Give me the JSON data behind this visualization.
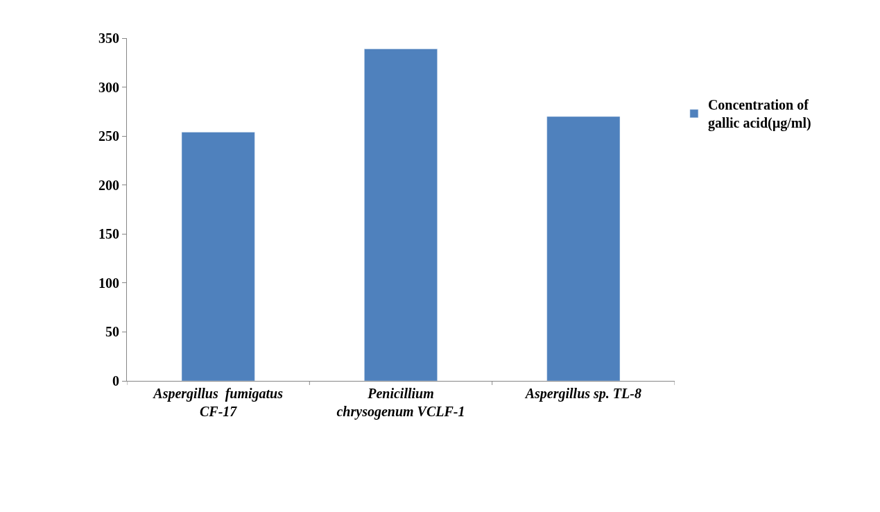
{
  "chart_data": {
    "type": "bar",
    "categories": [
      "Aspergillus  fumigatus\nCF-17",
      "Penicillium\nchrysogenum VCLF-1",
      "Aspergillus sp. TL-8"
    ],
    "series": [
      {
        "name": "Concentration of\ngallic acid(µg/ml)",
        "color": "#4f81bd",
        "values": [
          254,
          339,
          270
        ]
      }
    ],
    "ylim": [
      0,
      350
    ],
    "yticks": [
      0,
      50,
      100,
      150,
      200,
      250,
      300,
      350
    ],
    "legend": "right"
  }
}
